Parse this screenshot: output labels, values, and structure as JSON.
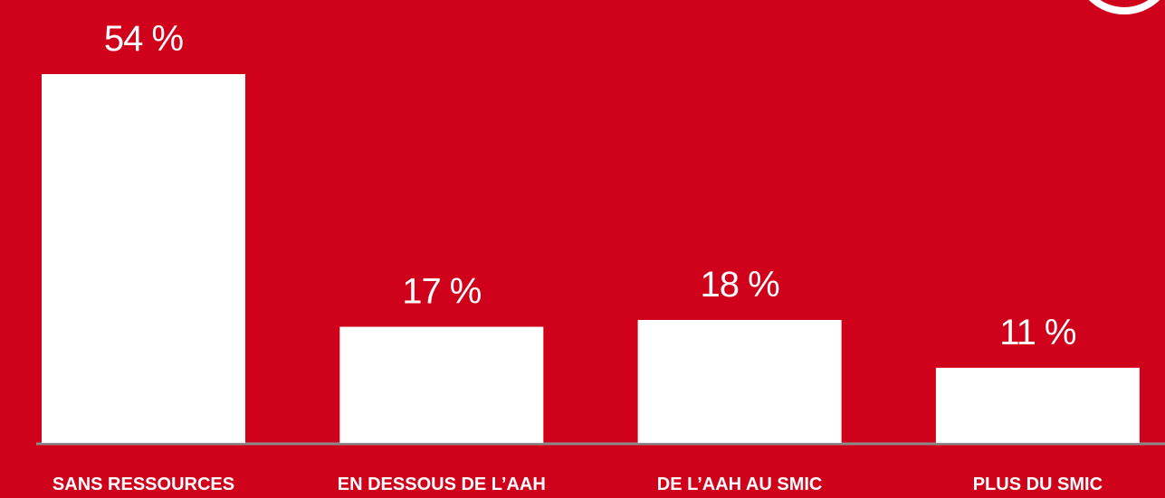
{
  "chart_data": {
    "type": "bar",
    "categories": [
      "SANS RESSOURCES",
      "EN DESSOUS DE L’AAH",
      "DE L’AAH AU SMIC",
      "PLUS DU SMIC"
    ],
    "values": [
      54,
      17,
      18,
      11
    ],
    "value_labels": [
      "54 %",
      "17 %",
      "18 %",
      "11 %"
    ],
    "color": "#ffffff"
  }
}
